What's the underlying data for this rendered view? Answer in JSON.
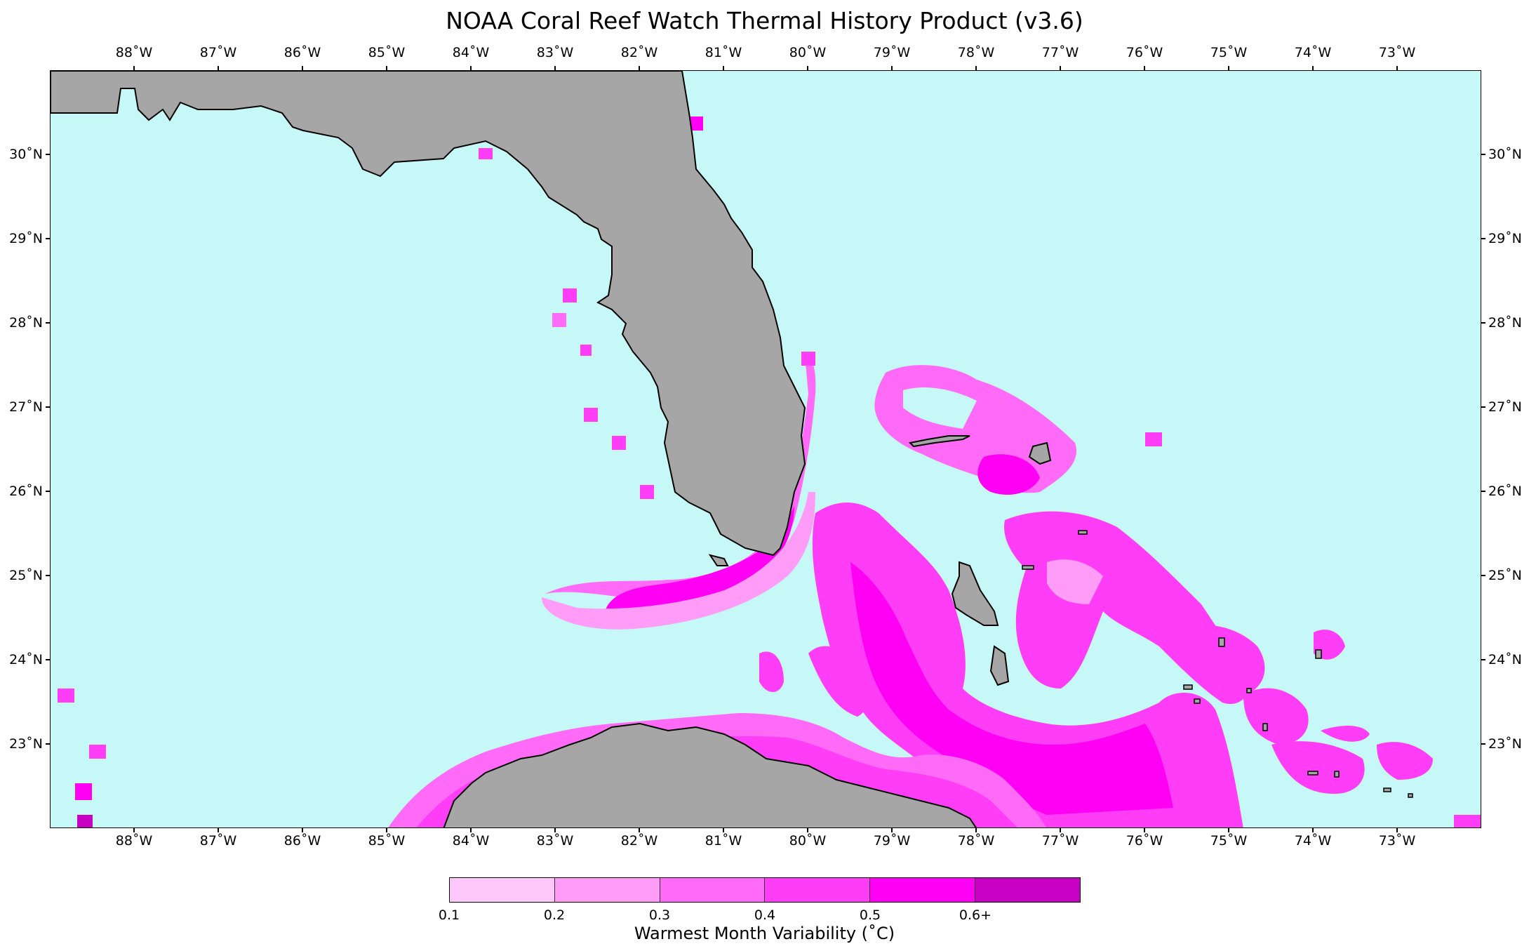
{
  "title": "NOAA Coral Reef Watch Thermal History Product (v3.6)",
  "map": {
    "lon_range": [
      -89.0,
      -72.0
    ],
    "lat_range": [
      22.0,
      31.0
    ],
    "lon_ticks": [
      "88˚W",
      "87˚W",
      "86˚W",
      "85˚W",
      "84˚W",
      "83˚W",
      "82˚W",
      "81˚W",
      "80˚W",
      "79˚W",
      "78˚W",
      "77˚W",
      "76˚W",
      "75˚W",
      "74˚W",
      "73˚W"
    ],
    "lon_values": [
      -88,
      -87,
      -86,
      -85,
      -84,
      -83,
      -82,
      -81,
      -80,
      -79,
      -78,
      -77,
      -76,
      -75,
      -74,
      -73
    ],
    "lat_ticks": [
      "30˚N",
      "29˚N",
      "28˚N",
      "27˚N",
      "26˚N",
      "25˚N",
      "24˚N",
      "23˚N"
    ],
    "lat_values": [
      30,
      29,
      28,
      27,
      26,
      25,
      24,
      23
    ],
    "colors": {
      "ocean": "#c5f8f7",
      "land": "#a6a6a6",
      "coast": "#000000"
    }
  },
  "colorbar": {
    "title": "Warmest Month Variability (˚C)",
    "labels": [
      "0.1",
      "0.2",
      "0.3",
      "0.4",
      "0.5",
      "0.6+"
    ],
    "colors": [
      "#ffc8fb",
      "#ff9cf8",
      "#ff6af6",
      "#ff3cf6",
      "#ff00f5",
      "#c800c4"
    ]
  }
}
